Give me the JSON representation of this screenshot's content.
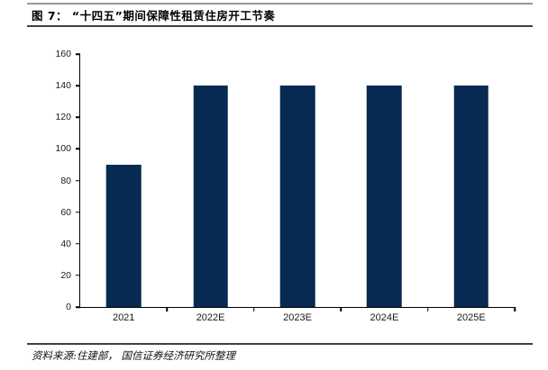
{
  "figure": {
    "title": "图 7：  “十四五”期间保障性租赁住房开工节奏",
    "source_note": "资料来源:住建部， 国信证券经济研究所整理"
  },
  "colors": {
    "bar": "#072A52",
    "axis": "#000000",
    "title_rule_top": "#999999",
    "title_rule_bottom": "#404040"
  },
  "chart_data": {
    "type": "bar",
    "title": "“十四五”期间保障性租赁住房开工节奏",
    "categories": [
      "2021",
      "2022E",
      "2023E",
      "2024E",
      "2025E"
    ],
    "values": [
      90,
      140,
      140,
      140,
      140
    ],
    "xlabel": "",
    "ylabel": "",
    "ylim": [
      0,
      160
    ],
    "yticks": [
      0,
      20,
      40,
      60,
      80,
      100,
      120,
      140,
      160
    ],
    "grid": false,
    "legend": "none",
    "bar_color": "#072A52"
  }
}
